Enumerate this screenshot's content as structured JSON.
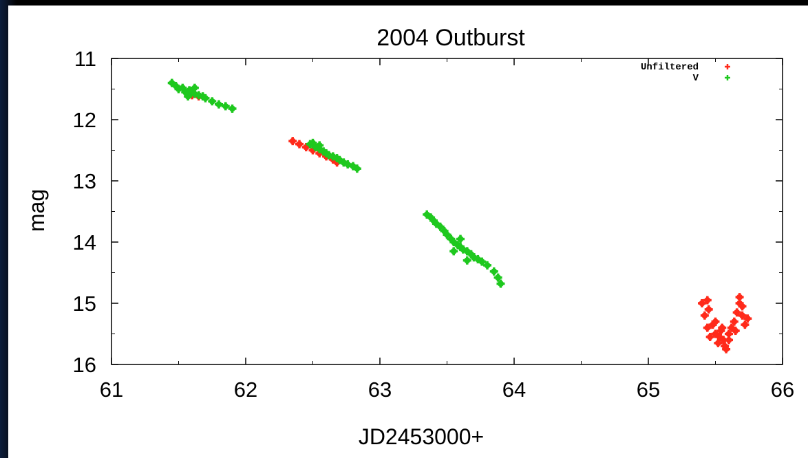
{
  "chart_data": {
    "type": "scatter",
    "title": "2004 Outburst",
    "xlabel": "JD2453000+",
    "ylabel": "mag",
    "xlim": [
      61,
      66
    ],
    "ylim": [
      11,
      16
    ],
    "y_inverted": true,
    "x_ticks": [
      "61",
      "62",
      "63",
      "64",
      "65",
      "66"
    ],
    "y_ticks": [
      "11",
      "12",
      "13",
      "14",
      "15",
      "16"
    ],
    "grid": false,
    "legend_position": "top-right",
    "series": [
      {
        "name": "Unfiltered",
        "color": "#ff2a1a",
        "marker": "plus",
        "points": [
          [
            62.35,
            12.35
          ],
          [
            62.4,
            12.4
          ],
          [
            62.45,
            12.45
          ],
          [
            62.5,
            12.5
          ],
          [
            62.55,
            12.55
          ],
          [
            62.6,
            12.6
          ],
          [
            62.65,
            12.65
          ],
          [
            62.68,
            12.7
          ],
          [
            61.6,
            11.6
          ],
          [
            61.65,
            11.62
          ],
          [
            65.4,
            15.0
          ],
          [
            65.42,
            15.2
          ],
          [
            65.44,
            15.4
          ],
          [
            65.46,
            15.55
          ],
          [
            65.48,
            15.35
          ],
          [
            65.5,
            15.5
          ],
          [
            65.52,
            15.65
          ],
          [
            65.54,
            15.45
          ],
          [
            65.56,
            15.6
          ],
          [
            65.58,
            15.75
          ],
          [
            65.6,
            15.5
          ],
          [
            65.62,
            15.4
          ],
          [
            65.64,
            15.3
          ],
          [
            65.66,
            15.15
          ],
          [
            65.68,
            15.0
          ],
          [
            65.7,
            15.2
          ],
          [
            65.72,
            15.35
          ],
          [
            65.74,
            15.25
          ],
          [
            65.45,
            15.1
          ],
          [
            65.5,
            15.3
          ],
          [
            65.55,
            15.4
          ],
          [
            65.6,
            15.6
          ],
          [
            65.65,
            15.45
          ],
          [
            65.7,
            15.05
          ],
          [
            65.68,
            14.9
          ],
          [
            65.44,
            14.95
          ],
          [
            65.57,
            15.7
          ],
          [
            65.53,
            15.55
          ]
        ]
      },
      {
        "name": "V",
        "color": "#1ec81e",
        "marker": "plus",
        "points": [
          [
            61.45,
            11.4
          ],
          [
            61.48,
            11.45
          ],
          [
            61.5,
            11.5
          ],
          [
            61.53,
            11.48
          ],
          [
            61.55,
            11.55
          ],
          [
            61.58,
            11.52
          ],
          [
            61.6,
            11.55
          ],
          [
            61.62,
            11.58
          ],
          [
            61.65,
            11.6
          ],
          [
            61.68,
            11.62
          ],
          [
            61.7,
            11.65
          ],
          [
            61.75,
            11.7
          ],
          [
            61.8,
            11.75
          ],
          [
            61.85,
            11.78
          ],
          [
            61.9,
            11.82
          ],
          [
            61.62,
            11.48
          ],
          [
            61.57,
            11.62
          ],
          [
            62.48,
            12.4
          ],
          [
            62.5,
            12.38
          ],
          [
            62.52,
            12.45
          ],
          [
            62.55,
            12.48
          ],
          [
            62.58,
            12.52
          ],
          [
            62.6,
            12.55
          ],
          [
            62.62,
            12.58
          ],
          [
            62.65,
            12.6
          ],
          [
            62.68,
            12.63
          ],
          [
            62.7,
            12.66
          ],
          [
            62.73,
            12.7
          ],
          [
            62.76,
            12.73
          ],
          [
            62.8,
            12.76
          ],
          [
            62.83,
            12.8
          ],
          [
            62.55,
            12.42
          ],
          [
            63.35,
            13.55
          ],
          [
            63.38,
            13.6
          ],
          [
            63.4,
            13.65
          ],
          [
            63.42,
            13.7
          ],
          [
            63.45,
            13.75
          ],
          [
            63.48,
            13.82
          ],
          [
            63.5,
            13.88
          ],
          [
            63.53,
            13.95
          ],
          [
            63.55,
            14.0
          ],
          [
            63.58,
            14.05
          ],
          [
            63.6,
            14.08
          ],
          [
            63.62,
            14.12
          ],
          [
            63.65,
            14.15
          ],
          [
            63.68,
            14.2
          ],
          [
            63.7,
            14.25
          ],
          [
            63.73,
            14.28
          ],
          [
            63.76,
            14.32
          ],
          [
            63.8,
            14.38
          ],
          [
            63.85,
            14.48
          ],
          [
            63.88,
            14.58
          ],
          [
            63.9,
            14.68
          ],
          [
            63.6,
            13.95
          ],
          [
            63.65,
            14.3
          ],
          [
            63.55,
            14.15
          ]
        ]
      }
    ]
  }
}
